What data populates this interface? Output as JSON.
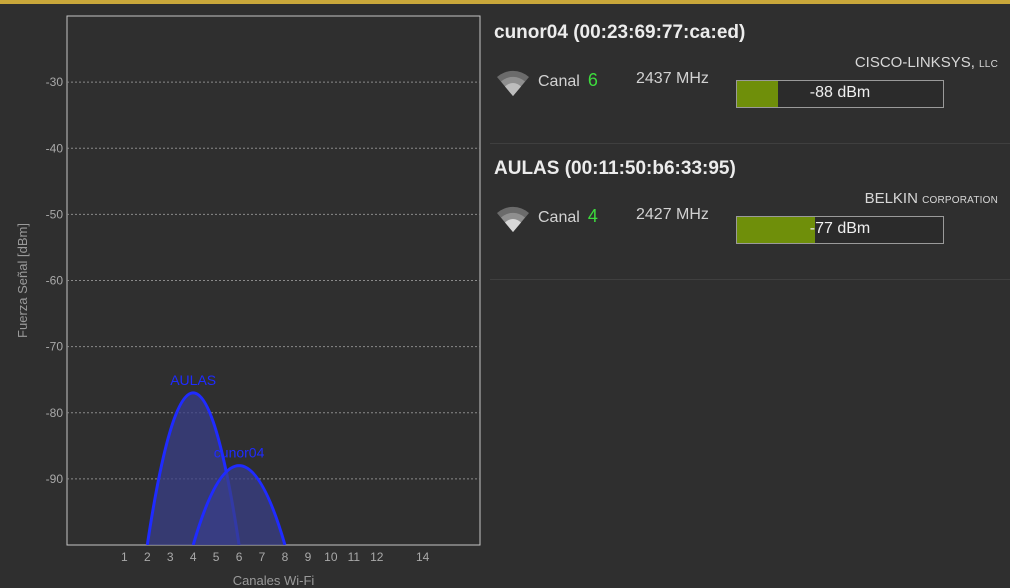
{
  "chart_data": {
    "type": "area",
    "xlabel": "Canales Wi-Fi",
    "ylabel": "Fuerza Señal [dBm]",
    "x_ticks": [
      "1",
      "2",
      "3",
      "4",
      "5",
      "6",
      "7",
      "8",
      "9",
      "10",
      "11",
      "12",
      "14"
    ],
    "y_ticks": [
      "-30",
      "-40",
      "-50",
      "-60",
      "-70",
      "-80",
      "-90"
    ],
    "xlim": [
      -1.5,
      16.5
    ],
    "ylim": [
      -100,
      -20
    ],
    "grid": true,
    "series": [
      {
        "name": "AULAS",
        "channel": 4,
        "peak": -77,
        "from": 2,
        "to": 6
      },
      {
        "name": "cunor04",
        "channel": 6,
        "peak": -88,
        "from": 4,
        "to": 8
      }
    ]
  },
  "colors": {
    "curve": "#1f2bff",
    "fill": "#3a3f88",
    "accent": "#3ddc3d",
    "meter": "#6f8f0a"
  },
  "networks": [
    {
      "title": "cunor04 (00:23:69:77:ca:ed)",
      "canal_label": "Canal",
      "channel": "6",
      "freq": "2437 MHz",
      "vendor_main": "CISCO-LINKSYS,",
      "vendor_sub": "LLC",
      "signal": "-88 dBm",
      "level": 0.2,
      "icon": "wifi-icon"
    },
    {
      "title": "AULAS (00:11:50:b6:33:95)",
      "canal_label": "Canal",
      "channel": "4",
      "freq": "2427 MHz",
      "vendor_main": "BELKIN",
      "vendor_sub": "CORPORATION",
      "signal": "-77 dBm",
      "level": 0.38,
      "icon": "wifi-icon"
    }
  ]
}
